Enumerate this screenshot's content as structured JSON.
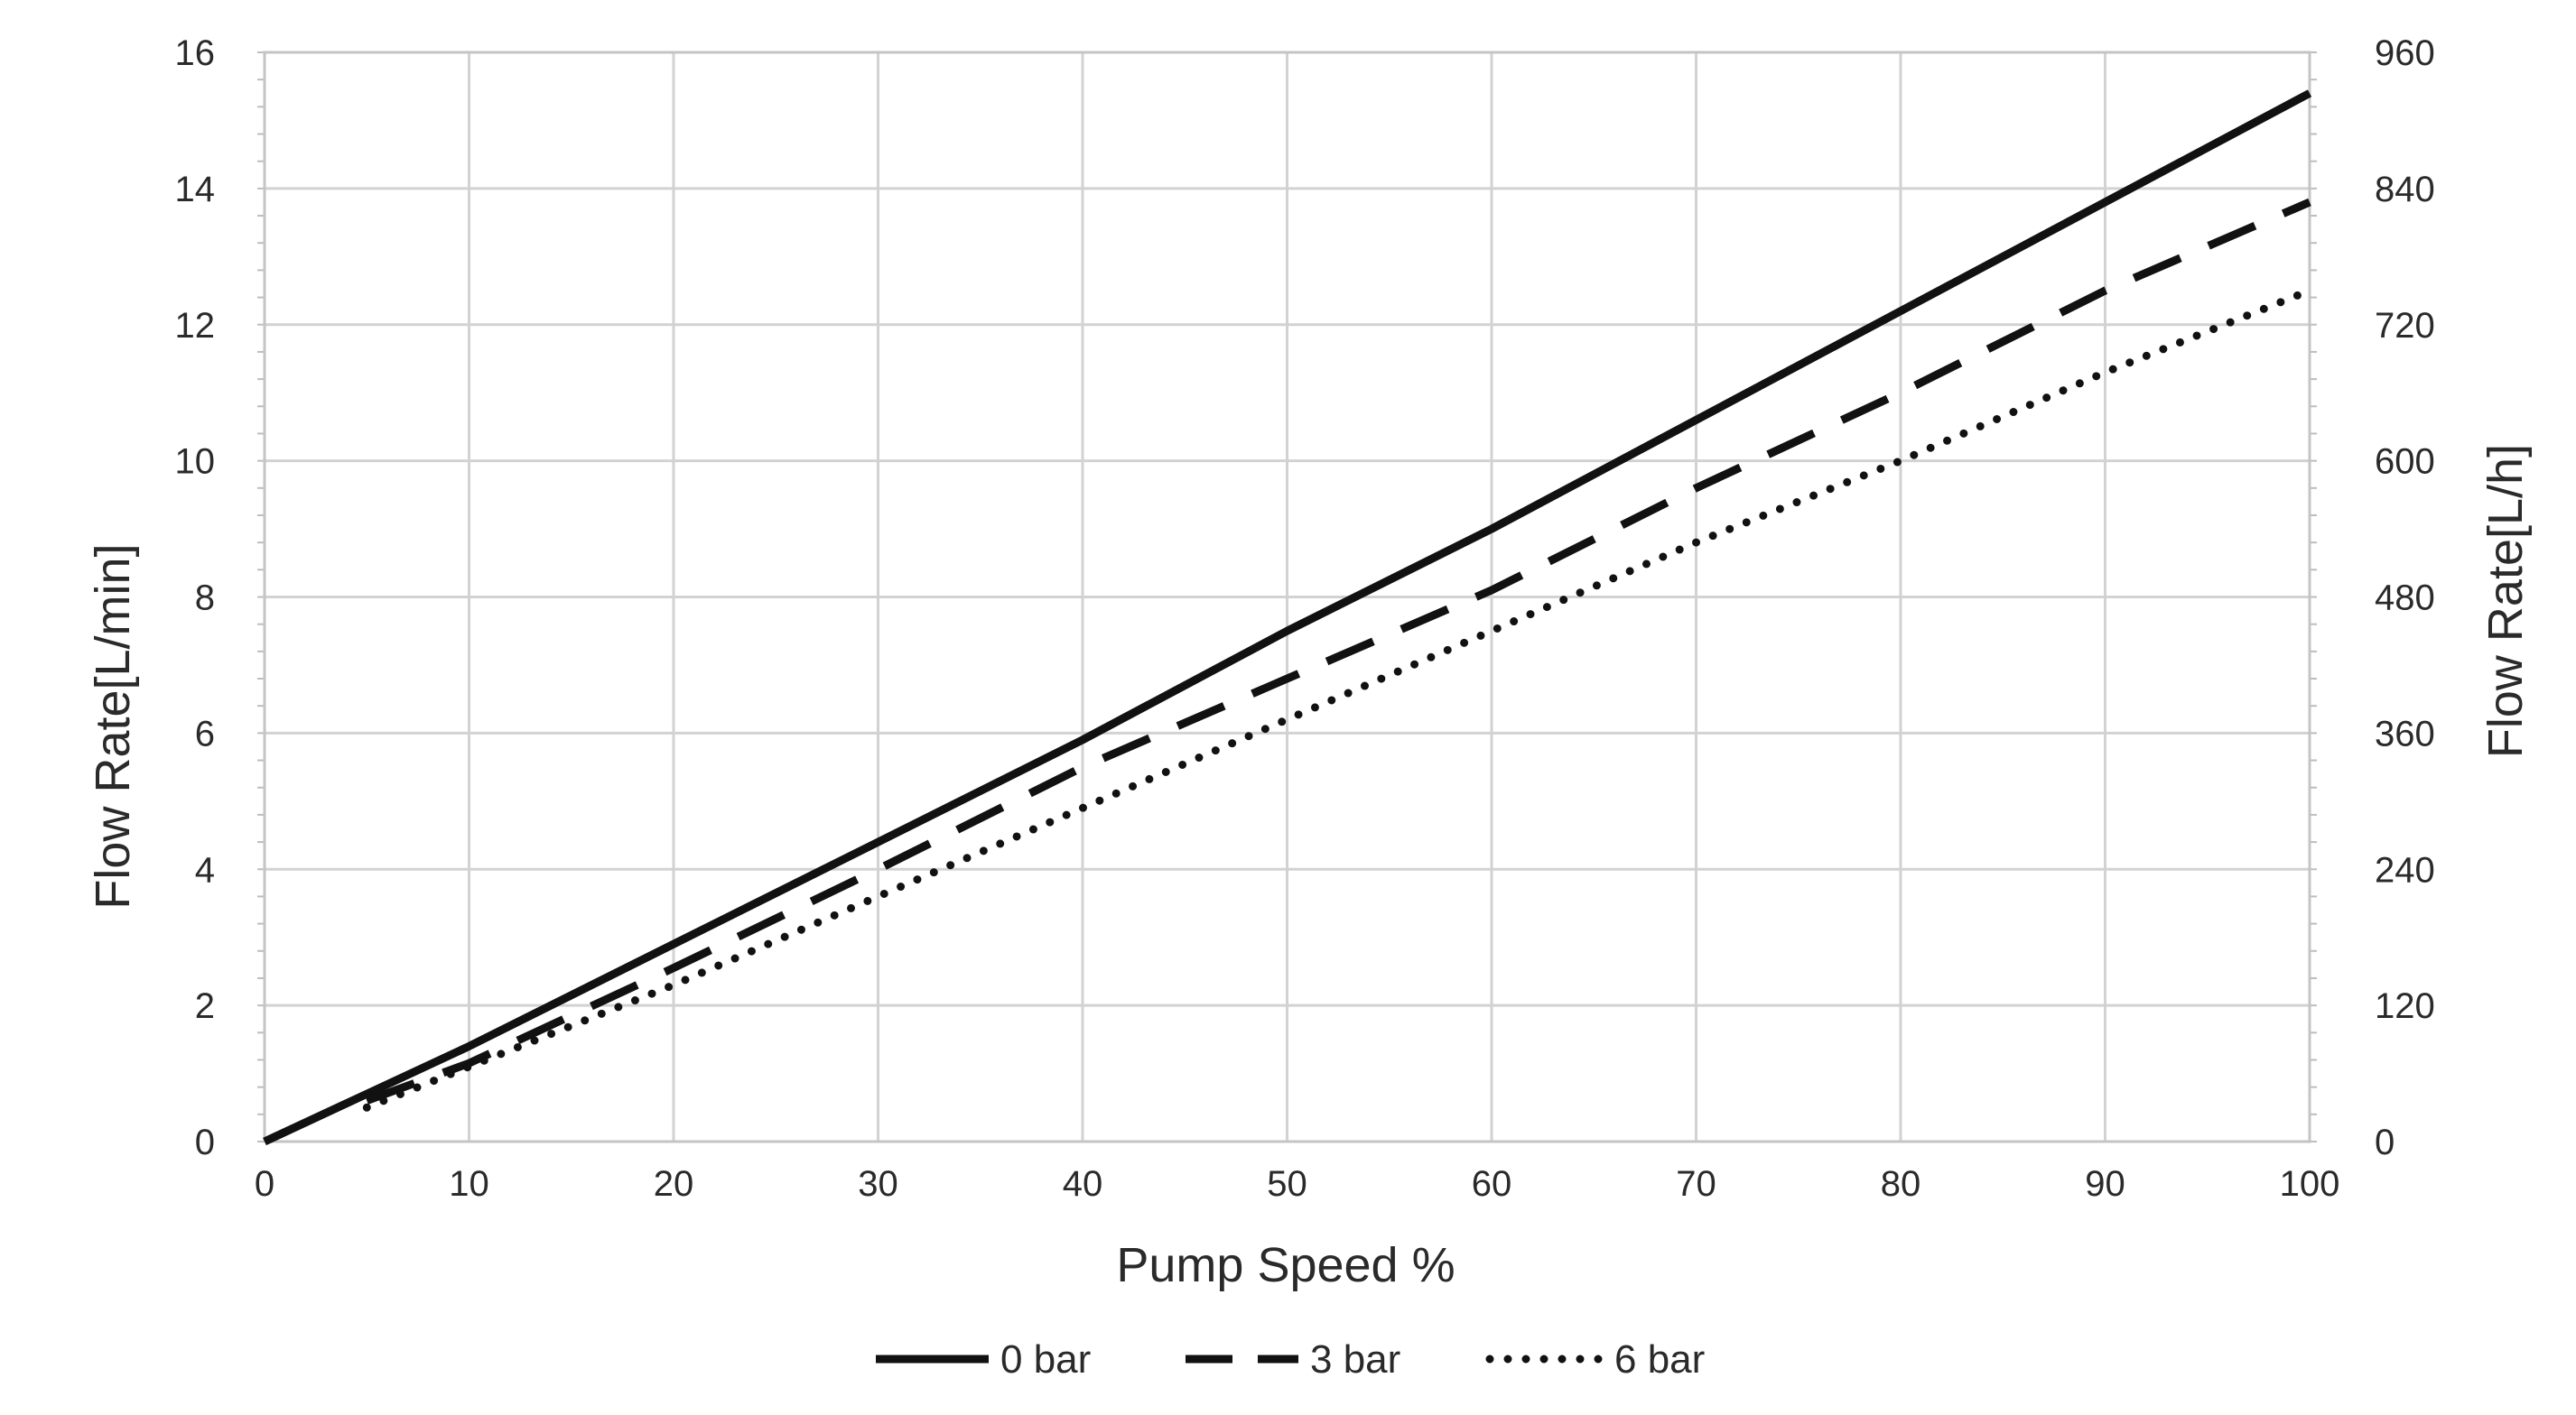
{
  "chart_data": {
    "type": "line",
    "xlabel": "Pump Speed %",
    "ylabel": "Flow Rate[L/min]",
    "y2label": "Flow Rate[L/h]",
    "xlim": [
      0,
      100
    ],
    "ylim": [
      0,
      16
    ],
    "y2lim": [
      0,
      960
    ],
    "x_ticks": [
      "0",
      "10",
      "20",
      "30",
      "40",
      "50",
      "60",
      "70",
      "80",
      "90",
      "100"
    ],
    "y_ticks": [
      "0",
      "2",
      "4",
      "6",
      "8",
      "10",
      "12",
      "14",
      "16"
    ],
    "y2_ticks": [
      "0",
      "120",
      "240",
      "360",
      "480",
      "600",
      "720",
      "840",
      "960"
    ],
    "grid": true,
    "legend_position": "bottom-center",
    "series": [
      {
        "name": "0 bar",
        "line_style": "solid",
        "color": "#111111",
        "x": [
          0,
          5,
          10,
          20,
          30,
          40,
          50,
          60,
          70,
          80,
          90,
          100
        ],
        "y": [
          0,
          0.7,
          1.4,
          2.9,
          4.4,
          5.9,
          7.5,
          9.0,
          10.6,
          12.2,
          13.8,
          15.4
        ]
      },
      {
        "name": "3 bar",
        "line_style": "dashed",
        "color": "#111111",
        "x": [
          5,
          10,
          20,
          30,
          40,
          50,
          60,
          70,
          80,
          90,
          100
        ],
        "y": [
          0.6,
          1.15,
          2.55,
          4.0,
          5.5,
          6.8,
          8.1,
          9.6,
          11.0,
          12.5,
          13.8
        ]
      },
      {
        "name": "6 bar",
        "line_style": "dotted",
        "color": "#111111",
        "x": [
          5,
          10,
          20,
          30,
          40,
          50,
          60,
          70,
          80,
          90,
          100
        ],
        "y": [
          0.5,
          1.1,
          2.3,
          3.6,
          4.9,
          6.2,
          7.5,
          8.8,
          10.0,
          11.3,
          12.5
        ]
      }
    ]
  }
}
